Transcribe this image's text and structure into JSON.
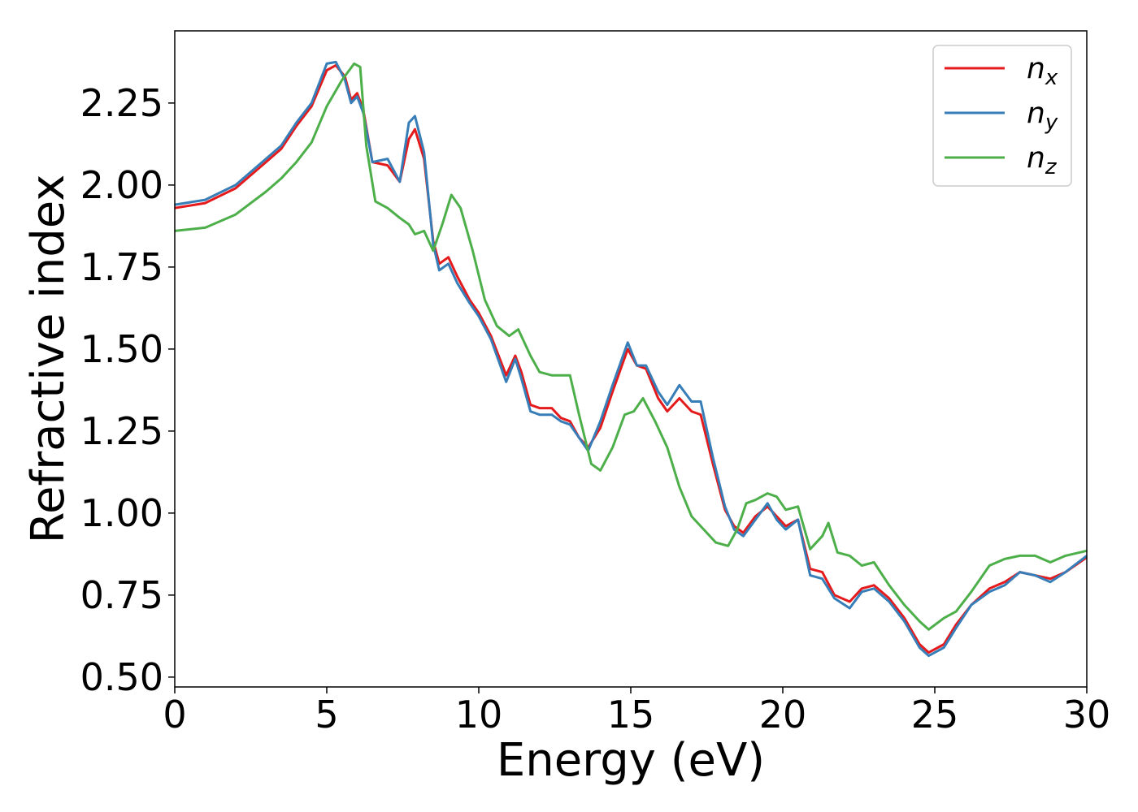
{
  "chart_data": {
    "type": "line",
    "title": "",
    "xlabel": "Energy (eV)",
    "ylabel": "Refractive index",
    "xlim": [
      0,
      30
    ],
    "ylim": [
      0.47,
      2.47
    ],
    "xticks": [
      0,
      5,
      10,
      15,
      20,
      25,
      30
    ],
    "xtick_labels": [
      "0",
      "5",
      "10",
      "15",
      "20",
      "25",
      "30"
    ],
    "yticks": [
      0.5,
      0.75,
      1.0,
      1.25,
      1.5,
      1.75,
      2.0,
      2.25
    ],
    "ytick_labels": [
      "0.50",
      "0.75",
      "1.00",
      "1.25",
      "1.50",
      "1.75",
      "2.00",
      "2.25"
    ],
    "grid": false,
    "legend_position": "top-right",
    "series": [
      {
        "name": "n",
        "subscript": "x",
        "color": "#e41a1c",
        "points": [
          [
            0,
            1.93
          ],
          [
            1,
            1.945
          ],
          [
            2,
            1.99
          ],
          [
            3,
            2.07
          ],
          [
            3.5,
            2.11
          ],
          [
            4,
            2.18
          ],
          [
            4.5,
            2.24
          ],
          [
            5,
            2.35
          ],
          [
            5.3,
            2.365
          ],
          [
            5.6,
            2.33
          ],
          [
            5.8,
            2.26
          ],
          [
            6.0,
            2.28
          ],
          [
            6.2,
            2.23
          ],
          [
            6.5,
            2.07
          ],
          [
            7.0,
            2.06
          ],
          [
            7.4,
            2.01
          ],
          [
            7.7,
            2.14
          ],
          [
            7.9,
            2.17
          ],
          [
            8.2,
            2.08
          ],
          [
            8.5,
            1.83
          ],
          [
            8.7,
            1.76
          ],
          [
            9.0,
            1.78
          ],
          [
            9.3,
            1.72
          ],
          [
            9.7,
            1.65
          ],
          [
            10.0,
            1.61
          ],
          [
            10.4,
            1.54
          ],
          [
            10.9,
            1.42
          ],
          [
            11.2,
            1.48
          ],
          [
            11.4,
            1.43
          ],
          [
            11.7,
            1.33
          ],
          [
            12.0,
            1.32
          ],
          [
            12.4,
            1.32
          ],
          [
            12.7,
            1.29
          ],
          [
            13.0,
            1.28
          ],
          [
            13.3,
            1.23
          ],
          [
            13.6,
            1.2
          ],
          [
            14.0,
            1.26
          ],
          [
            14.4,
            1.37
          ],
          [
            14.9,
            1.5
          ],
          [
            15.2,
            1.45
          ],
          [
            15.5,
            1.44
          ],
          [
            15.9,
            1.35
          ],
          [
            16.2,
            1.31
          ],
          [
            16.6,
            1.35
          ],
          [
            17.0,
            1.31
          ],
          [
            17.3,
            1.3
          ],
          [
            17.7,
            1.15
          ],
          [
            18.1,
            1.01
          ],
          [
            18.4,
            0.96
          ],
          [
            18.7,
            0.94
          ],
          [
            19.1,
            0.99
          ],
          [
            19.5,
            1.02
          ],
          [
            19.8,
            0.99
          ],
          [
            20.1,
            0.96
          ],
          [
            20.5,
            0.98
          ],
          [
            20.9,
            0.83
          ],
          [
            21.3,
            0.82
          ],
          [
            21.7,
            0.75
          ],
          [
            22.2,
            0.73
          ],
          [
            22.6,
            0.77
          ],
          [
            23.0,
            0.78
          ],
          [
            23.5,
            0.74
          ],
          [
            24.0,
            0.68
          ],
          [
            24.5,
            0.6
          ],
          [
            24.8,
            0.575
          ],
          [
            25.3,
            0.6
          ],
          [
            25.7,
            0.66
          ],
          [
            26.2,
            0.72
          ],
          [
            26.8,
            0.77
          ],
          [
            27.3,
            0.79
          ],
          [
            27.8,
            0.82
          ],
          [
            28.3,
            0.81
          ],
          [
            28.8,
            0.8
          ],
          [
            29.3,
            0.82
          ],
          [
            30,
            0.865
          ]
        ]
      },
      {
        "name": "n",
        "subscript": "y",
        "color": "#377eb8",
        "points": [
          [
            0,
            1.94
          ],
          [
            1,
            1.955
          ],
          [
            2,
            2.0
          ],
          [
            3,
            2.08
          ],
          [
            3.5,
            2.12
          ],
          [
            4,
            2.19
          ],
          [
            4.5,
            2.25
          ],
          [
            5,
            2.37
          ],
          [
            5.3,
            2.375
          ],
          [
            5.6,
            2.32
          ],
          [
            5.8,
            2.25
          ],
          [
            6.0,
            2.27
          ],
          [
            6.2,
            2.22
          ],
          [
            6.5,
            2.07
          ],
          [
            7.0,
            2.08
          ],
          [
            7.4,
            2.01
          ],
          [
            7.7,
            2.19
          ],
          [
            7.9,
            2.21
          ],
          [
            8.2,
            2.1
          ],
          [
            8.5,
            1.82
          ],
          [
            8.7,
            1.74
          ],
          [
            9.0,
            1.76
          ],
          [
            9.3,
            1.7
          ],
          [
            9.7,
            1.64
          ],
          [
            10.0,
            1.6
          ],
          [
            10.4,
            1.53
          ],
          [
            10.9,
            1.4
          ],
          [
            11.2,
            1.47
          ],
          [
            11.4,
            1.41
          ],
          [
            11.7,
            1.31
          ],
          [
            12.0,
            1.3
          ],
          [
            12.4,
            1.3
          ],
          [
            12.7,
            1.28
          ],
          [
            13.0,
            1.27
          ],
          [
            13.3,
            1.23
          ],
          [
            13.6,
            1.19
          ],
          [
            14.0,
            1.28
          ],
          [
            14.4,
            1.39
          ],
          [
            14.9,
            1.52
          ],
          [
            15.2,
            1.45
          ],
          [
            15.5,
            1.45
          ],
          [
            15.9,
            1.37
          ],
          [
            16.2,
            1.33
          ],
          [
            16.6,
            1.39
          ],
          [
            17.0,
            1.34
          ],
          [
            17.3,
            1.34
          ],
          [
            17.7,
            1.17
          ],
          [
            18.1,
            1.02
          ],
          [
            18.4,
            0.95
          ],
          [
            18.7,
            0.93
          ],
          [
            19.1,
            0.98
          ],
          [
            19.5,
            1.03
          ],
          [
            19.8,
            0.98
          ],
          [
            20.1,
            0.95
          ],
          [
            20.5,
            0.98
          ],
          [
            20.9,
            0.81
          ],
          [
            21.3,
            0.8
          ],
          [
            21.7,
            0.74
          ],
          [
            22.2,
            0.71
          ],
          [
            22.6,
            0.76
          ],
          [
            23.0,
            0.77
          ],
          [
            23.5,
            0.73
          ],
          [
            24.0,
            0.67
          ],
          [
            24.5,
            0.59
          ],
          [
            24.8,
            0.565
          ],
          [
            25.3,
            0.59
          ],
          [
            25.7,
            0.65
          ],
          [
            26.2,
            0.72
          ],
          [
            26.8,
            0.76
          ],
          [
            27.3,
            0.78
          ],
          [
            27.8,
            0.82
          ],
          [
            28.3,
            0.81
          ],
          [
            28.8,
            0.79
          ],
          [
            29.3,
            0.82
          ],
          [
            30,
            0.87
          ]
        ]
      },
      {
        "name": "n",
        "subscript": "z",
        "color": "#4daf4a",
        "points": [
          [
            0,
            1.86
          ],
          [
            1,
            1.87
          ],
          [
            2,
            1.91
          ],
          [
            3,
            1.98
          ],
          [
            3.5,
            2.02
          ],
          [
            4,
            2.07
          ],
          [
            4.5,
            2.13
          ],
          [
            5,
            2.24
          ],
          [
            5.5,
            2.32
          ],
          [
            5.9,
            2.37
          ],
          [
            6.1,
            2.36
          ],
          [
            6.3,
            2.12
          ],
          [
            6.6,
            1.95
          ],
          [
            7.0,
            1.93
          ],
          [
            7.4,
            1.9
          ],
          [
            7.7,
            1.88
          ],
          [
            7.9,
            1.85
          ],
          [
            8.2,
            1.86
          ],
          [
            8.5,
            1.8
          ],
          [
            8.8,
            1.88
          ],
          [
            9.1,
            1.97
          ],
          [
            9.4,
            1.93
          ],
          [
            9.8,
            1.8
          ],
          [
            10.2,
            1.65
          ],
          [
            10.6,
            1.57
          ],
          [
            11.0,
            1.54
          ],
          [
            11.3,
            1.56
          ],
          [
            11.7,
            1.48
          ],
          [
            12.0,
            1.43
          ],
          [
            12.4,
            1.42
          ],
          [
            12.7,
            1.42
          ],
          [
            13.0,
            1.42
          ],
          [
            13.3,
            1.3
          ],
          [
            13.7,
            1.15
          ],
          [
            14.0,
            1.13
          ],
          [
            14.4,
            1.2
          ],
          [
            14.8,
            1.3
          ],
          [
            15.1,
            1.31
          ],
          [
            15.4,
            1.35
          ],
          [
            15.8,
            1.28
          ],
          [
            16.2,
            1.2
          ],
          [
            16.6,
            1.08
          ],
          [
            17.0,
            0.99
          ],
          [
            17.4,
            0.95
          ],
          [
            17.8,
            0.91
          ],
          [
            18.2,
            0.9
          ],
          [
            18.5,
            0.95
          ],
          [
            18.8,
            1.03
          ],
          [
            19.1,
            1.04
          ],
          [
            19.5,
            1.06
          ],
          [
            19.8,
            1.05
          ],
          [
            20.1,
            1.01
          ],
          [
            20.5,
            1.02
          ],
          [
            20.9,
            0.89
          ],
          [
            21.3,
            0.93
          ],
          [
            21.5,
            0.97
          ],
          [
            21.8,
            0.88
          ],
          [
            22.2,
            0.87
          ],
          [
            22.6,
            0.84
          ],
          [
            23.0,
            0.85
          ],
          [
            23.5,
            0.78
          ],
          [
            24.0,
            0.72
          ],
          [
            24.5,
            0.67
          ],
          [
            24.8,
            0.645
          ],
          [
            25.3,
            0.68
          ],
          [
            25.7,
            0.7
          ],
          [
            26.2,
            0.76
          ],
          [
            26.8,
            0.84
          ],
          [
            27.3,
            0.86
          ],
          [
            27.8,
            0.87
          ],
          [
            28.3,
            0.87
          ],
          [
            28.8,
            0.85
          ],
          [
            29.3,
            0.87
          ],
          [
            30,
            0.885
          ]
        ]
      }
    ]
  }
}
